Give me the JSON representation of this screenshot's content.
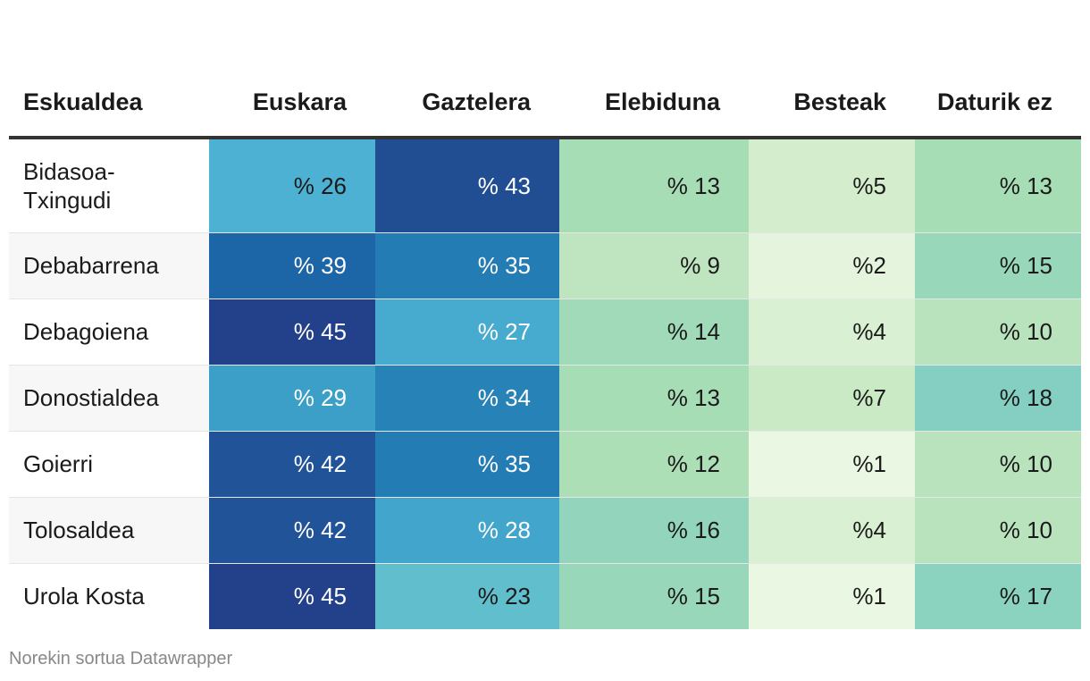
{
  "chart_data": {
    "type": "table",
    "columns": [
      "Eskualdea",
      "Euskara",
      "Gaztelera",
      "Elebiduna",
      "Besteak",
      "Daturik ez"
    ],
    "rows": [
      {
        "region": "Bidasoa-Txingudi",
        "values": [
          26,
          43,
          13,
          5,
          13
        ],
        "labels": [
          "% 26",
          "% 43",
          "% 13",
          "%5",
          "% 13"
        ]
      },
      {
        "region": "Debabarrena",
        "values": [
          39,
          35,
          9,
          2,
          15
        ],
        "labels": [
          "% 39",
          "% 35",
          "% 9",
          "%2",
          "% 15"
        ]
      },
      {
        "region": "Debagoiena",
        "values": [
          45,
          27,
          14,
          4,
          10
        ],
        "labels": [
          "% 45",
          "% 27",
          "% 14",
          "%4",
          "% 10"
        ]
      },
      {
        "region": "Donostialdea",
        "values": [
          29,
          34,
          13,
          7,
          18
        ],
        "labels": [
          "% 29",
          "% 34",
          "% 13",
          "%7",
          "% 18"
        ]
      },
      {
        "region": "Goierri",
        "values": [
          42,
          35,
          12,
          1,
          10
        ],
        "labels": [
          "% 42",
          "% 35",
          "% 12",
          "%1",
          "% 10"
        ]
      },
      {
        "region": "Tolosaldea",
        "values": [
          42,
          28,
          16,
          4,
          10
        ],
        "labels": [
          "% 42",
          "% 28",
          "% 16",
          "%4",
          "% 10"
        ]
      },
      {
        "region": "Urola Kosta",
        "values": [
          45,
          23,
          15,
          1,
          17
        ],
        "labels": [
          "% 45",
          "% 23",
          "% 15",
          "%1",
          "% 17"
        ]
      }
    ],
    "color_scale": {
      "stops": [
        "#f0f9e8",
        "#ccebc5",
        "#a8ddb5",
        "#7bccc4",
        "#4eb3d3",
        "#2b8cbe",
        "#1c68a8",
        "#23418a"
      ],
      "domain": [
        0,
        45
      ],
      "dark_text_color": "#1a1a1a",
      "light_text_color": "#ffffff"
    }
  },
  "footer": "Norekin sortua Datawrapper"
}
